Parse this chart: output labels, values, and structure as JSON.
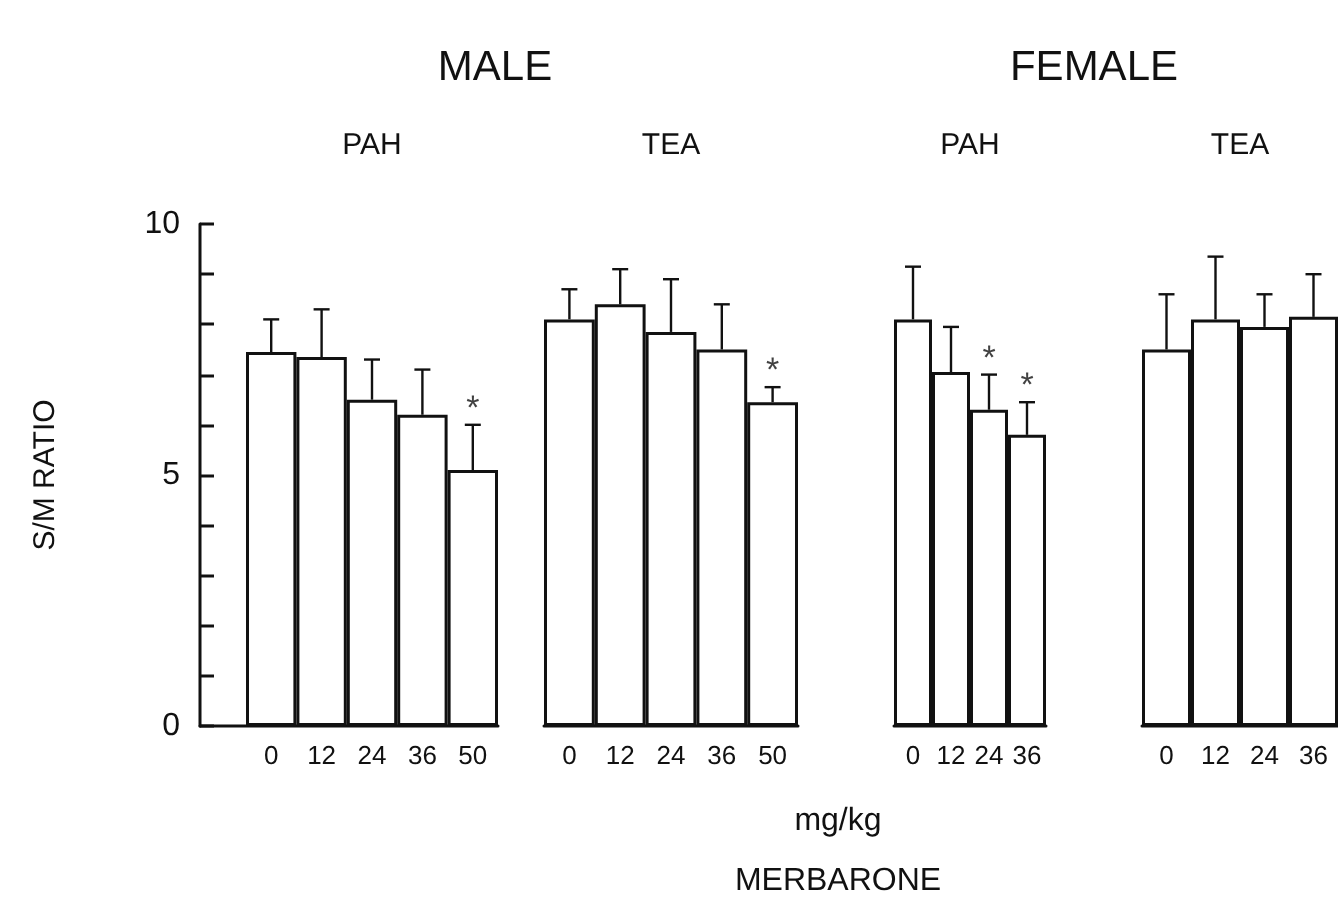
{
  "chart_data": [
    {
      "type": "bar",
      "title": "MALE",
      "subtitle": "PAH",
      "ylabel": "S/M RATIO",
      "categories": [
        "0",
        "12",
        "24",
        "36",
        "50"
      ],
      "values": [
        7.45,
        7.35,
        6.5,
        6.2,
        5.1
      ],
      "errors": [
        0.65,
        0.95,
        0.8,
        0.9,
        0.9
      ],
      "color": "#ffffff",
      "ylim": [
        0,
        10
      ],
      "yticks": [
        0,
        {
          "value": 1,
          "label": null
        },
        {
          "value": 2,
          "label": null
        },
        {
          "value": 3,
          "label": null
        },
        {
          "value": 4,
          "label": null
        },
        5,
        {
          "value": 6,
          "label": null
        },
        {
          "value": 7,
          "label": null
        },
        {
          "value": 8,
          "label": null
        },
        {
          "value": 9,
          "label": null
        },
        10
      ],
      "annotations": [
        {
          "text": "*",
          "x": "50",
          "y": 5.1
        }
      ]
    },
    {
      "type": "bar",
      "subtitle": "TEA",
      "xlabel": "mg/kg",
      "categories": [
        "0",
        "12",
        "24",
        "36",
        "50"
      ],
      "values": [
        8.1,
        8.4,
        7.85,
        7.5,
        6.45
      ],
      "errors": [
        0.6,
        0.7,
        1.05,
        0.9,
        0.3
      ],
      "color": "#ffffff",
      "ylim": [
        0,
        10
      ],
      "tick_labels": "x",
      "annotations": [
        {
          "text": "*",
          "x": "50",
          "y": 6.45
        },
        "MERBARONE"
      ]
    },
    {
      "type": "bar",
      "title": "FEMALE",
      "subtitle": "PAH",
      "categories": [
        "0",
        "12",
        "24",
        "36"
      ],
      "values": [
        8.1,
        7.05,
        6.3,
        5.8
      ],
      "errors": [
        1.05,
        0.9,
        0.7,
        0.65
      ],
      "color": "#ffffff",
      "ylim": [
        0,
        10
      ],
      "tick_labels": "x",
      "annotations": [
        {
          "text": "*",
          "x": "24",
          "y": 6.3
        },
        {
          "text": "*",
          "x": "36",
          "y": 5.8
        }
      ]
    },
    {
      "type": "bar",
      "subtitle": "TEA",
      "categories": [
        "0",
        "12",
        "24",
        "36"
      ],
      "values": [
        7.5,
        8.1,
        7.95,
        8.15
      ],
      "errors": [
        1.1,
        1.25,
        0.65,
        0.85
      ],
      "color": "#ffffff",
      "ylim": [
        0,
        10
      ],
      "tick_labels": "x"
    }
  ]
}
